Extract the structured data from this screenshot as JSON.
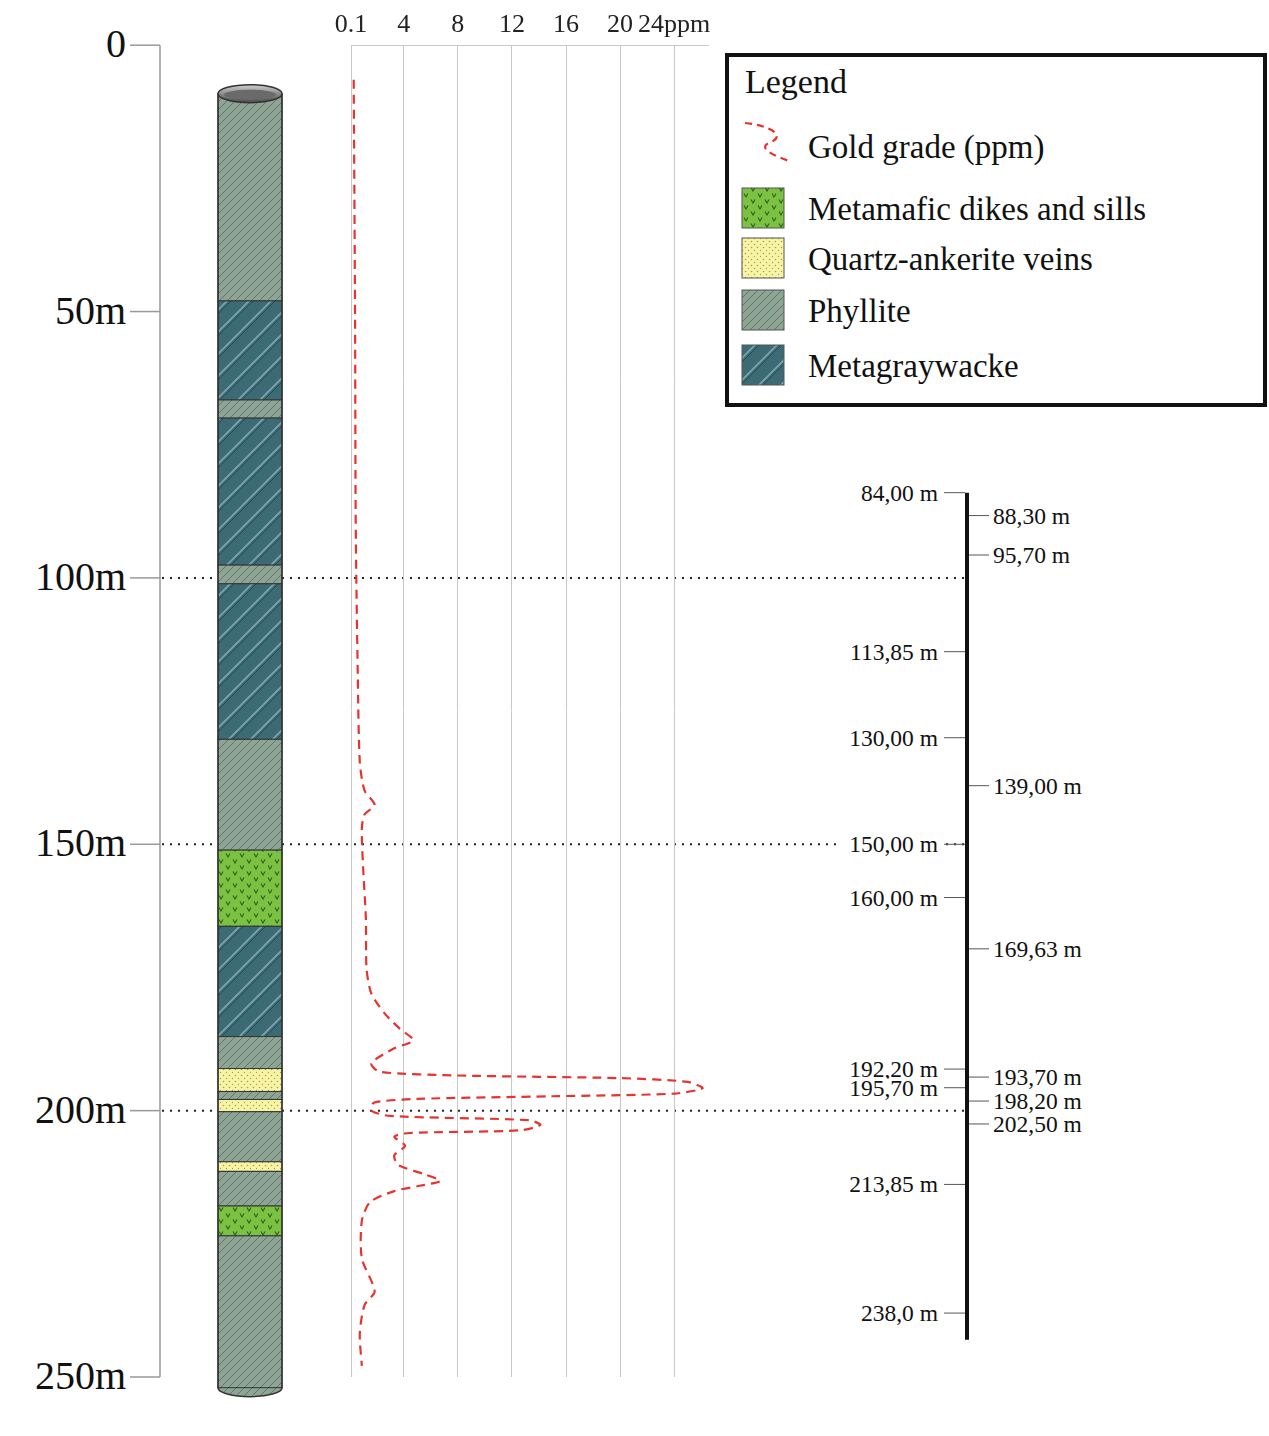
{
  "chart_data": {
    "type": "line",
    "series": [
      {
        "name": "Gold grade (ppm)",
        "color": "#e8322d",
        "line_style": "dashed",
        "values": [
          0.3,
          0.4,
          0.45,
          0.6,
          0.75,
          1.1,
          1.85,
          1.1,
          0.9,
          1.0,
          1.2,
          1.25,
          1.6,
          2.6,
          3.7,
          4.7,
          3.3,
          1.6,
          2.2,
          8,
          20,
          25,
          26.1,
          24,
          15,
          5,
          1.8,
          1.6,
          3,
          13.3,
          14.1,
          12.6,
          4.4,
          3.3,
          4.1,
          3.3,
          3.6,
          5.6,
          6.7,
          5.2,
          3.3,
          1.5,
          0.9,
          0.9,
          1.85,
          1.1,
          0.75,
          0.9
        ]
      }
    ],
    "y": [
      6.5,
      50.8,
      90,
      118,
      134.5,
      139.9,
      142.6,
      144.4,
      147.1,
      154.5,
      163.9,
      173.3,
      178,
      181.8,
      184.6,
      186.8,
      188.3,
      191.1,
      192.7,
      193.4,
      193.9,
      194.6,
      195.8,
      196.8,
      197.3,
      197.8,
      198.5,
      200,
      201,
      201.8,
      202.7,
      203.7,
      204.2,
      204.9,
      206.6,
      208.4,
      210.2,
      212,
      213.2,
      214.1,
      215.1,
      217.2,
      220.7,
      227.7,
      233.9,
      236.5,
      241.8,
      247.9
    ],
    "xlim": [
      0.1,
      26.5
    ],
    "xticks": [
      0.1,
      4,
      8,
      12,
      16,
      20,
      {
        "value": 24,
        "label": "24ppm"
      }
    ],
    "ylim": [
      0,
      250
    ],
    "yticks": [
      0,
      {
        "value": 50,
        "label": "50m"
      },
      {
        "value": 100,
        "label": "100m"
      },
      {
        "value": 150,
        "label": "150m"
      },
      {
        "value": 200,
        "label": "200m"
      },
      {
        "value": 250,
        "label": "250m"
      }
    ],
    "grid": true,
    "legend": "top right"
  },
  "legend_box": {
    "title": "Legend",
    "items": [
      {
        "label": "Metamafic dikes and sills",
        "color": "#7cc242",
        "marker": "v"
      },
      {
        "label": "Quartz-ankerite veins",
        "color": "#f8f4a6",
        "marker": "dots"
      },
      {
        "label": "Phyllite",
        "color": "#8ea596",
        "marker": "hatch"
      },
      {
        "label": "Metagraywacke",
        "color": "#3d6b75",
        "marker": "wide_hatch"
      }
    ]
  },
  "core": {
    "top": 9.1,
    "bottom": 252,
    "intervals": [
      {
        "from": 9.1,
        "to": 48.0,
        "rock": "Phyllite"
      },
      {
        "from": 48.0,
        "to": 66.6,
        "rock": "Metagraywacke"
      },
      {
        "from": 66.6,
        "to": 70.0,
        "rock": "Phyllite"
      },
      {
        "from": 70.0,
        "to": 97.6,
        "rock": "Metagraywacke"
      },
      {
        "from": 97.6,
        "to": 101.1,
        "rock": "Phyllite"
      },
      {
        "from": 101.1,
        "to": 130.3,
        "rock": "Metagraywacke"
      },
      {
        "from": 130.3,
        "to": 151.1,
        "rock": "Phyllite"
      },
      {
        "from": 151.1,
        "to": 165.4,
        "rock": "Metamafic dikes and sills"
      },
      {
        "from": 165.4,
        "to": 186.1,
        "rock": "Metagraywacke"
      },
      {
        "from": 186.1,
        "to": 192.1,
        "rock": "Phyllite"
      },
      {
        "from": 192.1,
        "to": 196.4,
        "rock": "Quartz-ankerite veins"
      },
      {
        "from": 196.4,
        "to": 197.9,
        "rock": "Phyllite"
      },
      {
        "from": 197.9,
        "to": 200.2,
        "rock": "Quartz-ankerite veins"
      },
      {
        "from": 200.2,
        "to": 209.6,
        "rock": "Phyllite"
      },
      {
        "from": 209.6,
        "to": 211.4,
        "rock": "Quartz-ankerite veins"
      },
      {
        "from": 211.4,
        "to": 217.9,
        "rock": "Phyllite"
      },
      {
        "from": 217.9,
        "to": 223.5,
        "rock": "Metamafic dikes and sills"
      },
      {
        "from": 223.5,
        "to": 252,
        "rock": "Phyllite"
      }
    ]
  },
  "dotted_depths": [
    100,
    150,
    200
  ],
  "depth_marks": {
    "range": [
      84,
      243
    ],
    "left": [
      {
        "depth": 84.0,
        "label": "84,00 m"
      },
      {
        "depth": 113.85,
        "label": "113,85 m"
      },
      {
        "depth": 130.0,
        "label": "130,00 m"
      },
      {
        "depth": 150.0,
        "label": "150,00 m"
      },
      {
        "depth": 160.0,
        "label": "160,00 m"
      },
      {
        "depth": 192.2,
        "label": "192,20 m"
      },
      {
        "depth": 195.7,
        "label": "195,70 m"
      },
      {
        "depth": 213.85,
        "label": "213,85 m"
      },
      {
        "depth": 238.0,
        "label": "238,0 m"
      }
    ],
    "right": [
      {
        "depth": 88.3,
        "label": "88,30 m"
      },
      {
        "depth": 95.7,
        "label": "95,70 m"
      },
      {
        "depth": 139.0,
        "label": "139,00 m"
      },
      {
        "depth": 169.63,
        "label": "169,63 m"
      },
      {
        "depth": 193.7,
        "label": "193,70 m"
      },
      {
        "depth": 198.2,
        "label": "198,20 m"
      },
      {
        "depth": 202.5,
        "label": "202,50 m"
      }
    ]
  }
}
